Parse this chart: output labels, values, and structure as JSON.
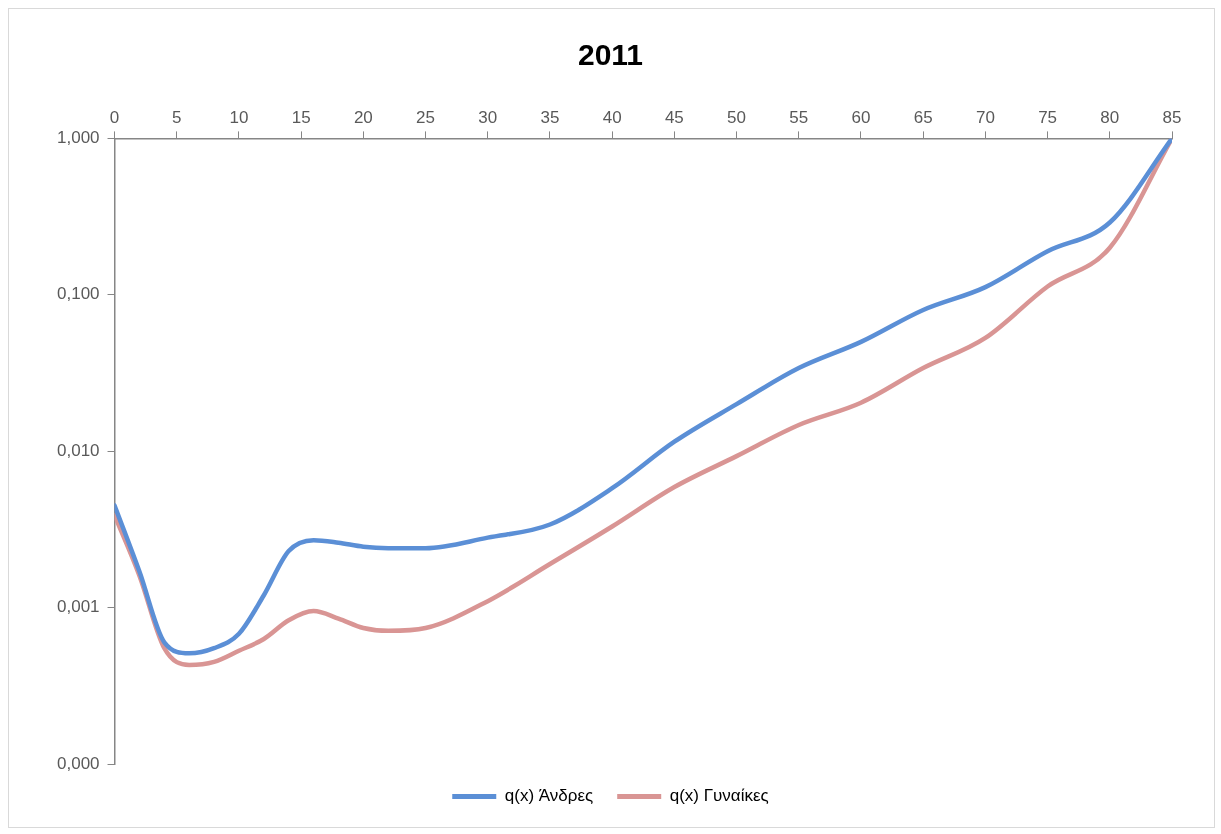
{
  "chart_data": {
    "type": "line",
    "title": "2011",
    "x": [
      0,
      2,
      4,
      6,
      8,
      10,
      12,
      14,
      16,
      18,
      20,
      22,
      25,
      30,
      35,
      40,
      45,
      50,
      55,
      60,
      65,
      70,
      75,
      80,
      85
    ],
    "series": [
      {
        "name": "q(x) Άνδρες",
        "color": "#5b8fd6",
        "values": [
          0.0045,
          0.0017,
          0.0006,
          0.00051,
          0.00055,
          0.00068,
          0.0012,
          0.0023,
          0.0027,
          0.0026,
          0.00245,
          0.0024,
          0.0024,
          0.0028,
          0.0034,
          0.0058,
          0.0115,
          0.02,
          0.034,
          0.05,
          0.08,
          0.112,
          0.19,
          0.29,
          1
        ]
      },
      {
        "name": "q(x) Γυναίκες",
        "color": "#d99594",
        "values": [
          0.0039,
          0.0016,
          0.00055,
          0.00043,
          0.00045,
          0.00053,
          0.00063,
          0.00083,
          0.00095,
          0.00085,
          0.00074,
          0.00071,
          0.00074,
          0.0011,
          0.0019,
          0.0033,
          0.0059,
          0.0093,
          0.0147,
          0.0204,
          0.034,
          0.053,
          0.113,
          0.2,
          1
        ]
      }
    ],
    "xlim": [
      0,
      85
    ],
    "xticks": [
      0,
      5,
      10,
      15,
      20,
      25,
      30,
      35,
      40,
      45,
      50,
      55,
      60,
      65,
      70,
      75,
      80,
      85
    ],
    "ylim": [
      0.0001,
      1
    ],
    "yticks": [
      {
        "value": 0.0001,
        "label": "0,000"
      },
      {
        "value": 0.001,
        "label": "0,001"
      },
      {
        "value": 0.01,
        "label": "0,010"
      },
      {
        "value": 0.1,
        "label": "0,100"
      },
      {
        "value": 1,
        "label": "1,000"
      }
    ],
    "log": "y",
    "grid": false,
    "legend": "bottom",
    "marker": "none",
    "line_style": "solid"
  }
}
